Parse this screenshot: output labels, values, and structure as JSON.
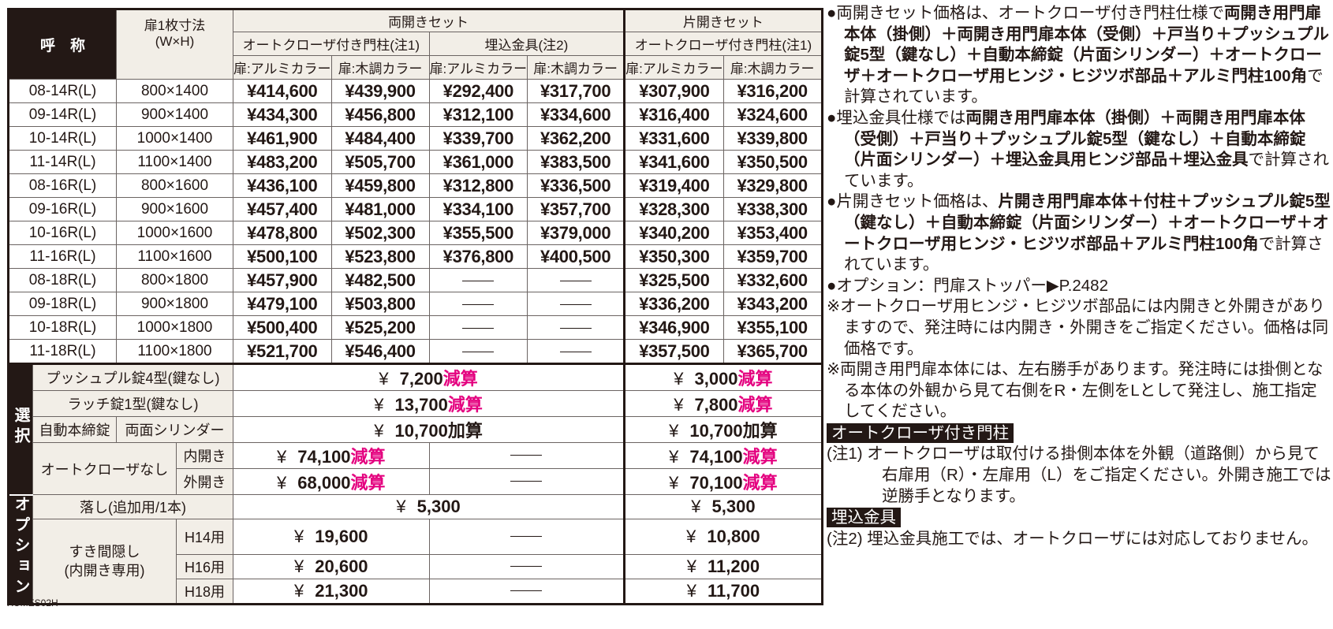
{
  "header": {
    "name": "呼　称",
    "size": "扉1枚寸法\n(W×H)",
    "double_set": "両開きセット",
    "single_set": "片開きセット",
    "autocloser_post": "オートクローザ付き門柱(注1)",
    "embedded": "埋込金具(注2)",
    "alu": "扉:アルミカラー",
    "wood": "扉:木調カラー"
  },
  "rows": [
    [
      "08-14R(L)",
      "800×1400",
      "¥414,600",
      "¥439,900",
      "¥292,400",
      "¥317,700",
      "¥307,900",
      "¥316,200"
    ],
    [
      "09-14R(L)",
      "900×1400",
      "¥434,300",
      "¥456,800",
      "¥312,100",
      "¥334,600",
      "¥316,400",
      "¥324,600"
    ],
    [
      "10-14R(L)",
      "1000×1400",
      "¥461,900",
      "¥484,400",
      "¥339,700",
      "¥362,200",
      "¥331,600",
      "¥339,800"
    ],
    [
      "11-14R(L)",
      "1100×1400",
      "¥483,200",
      "¥505,700",
      "¥361,000",
      "¥383,500",
      "¥341,600",
      "¥350,500"
    ],
    [
      "08-16R(L)",
      "800×1600",
      "¥436,100",
      "¥459,800",
      "¥312,800",
      "¥336,500",
      "¥319,400",
      "¥329,800"
    ],
    [
      "09-16R(L)",
      "900×1600",
      "¥457,400",
      "¥481,000",
      "¥334,100",
      "¥357,700",
      "¥328,300",
      "¥338,300"
    ],
    [
      "10-16R(L)",
      "1000×1600",
      "¥478,800",
      "¥502,300",
      "¥355,500",
      "¥379,000",
      "¥340,200",
      "¥353,400"
    ],
    [
      "11-16R(L)",
      "1100×1600",
      "¥500,100",
      "¥523,800",
      "¥376,800",
      "¥400,500",
      "¥350,300",
      "¥359,700"
    ],
    [
      "08-18R(L)",
      "800×1800",
      "¥457,900",
      "¥482,500",
      null,
      null,
      "¥325,500",
      "¥332,600"
    ],
    [
      "09-18R(L)",
      "900×1800",
      "¥479,100",
      "¥503,800",
      null,
      null,
      "¥336,200",
      "¥343,200"
    ],
    [
      "10-18R(L)",
      "1000×1800",
      "¥500,400",
      "¥525,200",
      null,
      null,
      "¥346,900",
      "¥355,100"
    ],
    [
      "11-18R(L)",
      "1100×1800",
      "¥521,700",
      "¥546,400",
      null,
      null,
      "¥357,500",
      "¥365,700"
    ]
  ],
  "options": {
    "select_label": "選択",
    "option_label": "オプション",
    "yen": "¥",
    "deduct_color": "#e4007f",
    "push_pull": {
      "label": "プッシュプル錠4型(鍵なし)",
      "double": "7,200",
      "double_suffix": "減算",
      "single": "3,000",
      "single_suffix": "減算"
    },
    "latch": {
      "label": "ラッチ錠1型(鍵なし)",
      "double": "13,700",
      "double_suffix": "減算",
      "single": "7,800",
      "single_suffix": "減算"
    },
    "deadbolt": {
      "label": "自動本締錠",
      "sub": "両面シリンダー",
      "double": "10,700",
      "double_suffix": "加算",
      "single": "10,700",
      "single_suffix": "加算"
    },
    "no_closer": {
      "label": "オートクローザなし",
      "inward": {
        "label": "内開き",
        "double": "74,100",
        "double_suffix": "減算",
        "single": "74,100",
        "single_suffix": "減算"
      },
      "outward": {
        "label": "外開き",
        "double": "68,000",
        "double_suffix": "減算",
        "single": "70,100",
        "single_suffix": "減算"
      }
    },
    "drop_rod": {
      "label": "落し(追加用/1本)",
      "double": "5,300",
      "single": "5,300"
    },
    "gap_cover": {
      "label": "すき間隠し\n(内開き専用)",
      "h14": {
        "label": "H14用",
        "double": "19,600",
        "single": "10,800"
      },
      "h16": {
        "label": "H16用",
        "double": "20,600",
        "single": "11,200"
      },
      "h18": {
        "label": "H18用",
        "double": "21,300",
        "single": "11,700"
      }
    }
  },
  "code": "XUMES02H",
  "notes": {
    "bullet": "●",
    "n1": {
      "a": "両開きセット価格は、オートクローザ付き門柱仕様で",
      "b": "両開き用門扉本体（掛側）＋両開き用門扉本体（受側）＋戸当り＋プッシュプル錠5型（鍵なし）＋自動本締錠（片面シリンダー）＋オートクローザ＋オートクローザ用ヒンジ・ヒジツボ部品＋アルミ門柱100角",
      "c": "で計算されています。"
    },
    "n2": {
      "a": "埋込金具仕様では",
      "b": "両開き用門扉本体（掛側）＋両開き用門扉本体（受側）＋戸当り＋プッシュプル錠5型（鍵なし）＋自動本締錠（片面シリンダー）＋埋込金具用ヒンジ部品＋埋込金具",
      "c": "で計算されています。"
    },
    "n3": {
      "a": "片開きセット価格は、",
      "b": "片開き用門扉本体＋付柱＋プッシュプル錠5型（鍵なし）＋自動本締錠（片面シリンダー）＋オートクローザ＋オートクローザ用ヒンジ・ヒジツボ部品＋アルミ門柱100角",
      "c": "で計算されています。"
    },
    "n4": "オプション：門扉ストッパー▶P.2482",
    "k1": "※オートクローザ用ヒンジ・ヒジツボ部品には内開きと外開きがありますので、発注時には内開き・外開きをご指定ください。価格は同価格です。",
    "k2": "※両開き用門扉本体には、左右勝手があります。発注時には掛側となる本体の外観から見て右側をR・左側をLとして発注し、施工指定してください。",
    "h1": "オートクローザ付き門柱",
    "c1": "(注1) オートクローザは取付ける掛側本体を外観（道路側）から見て右扉用（R）・左扉用（L）をご指定ください。外開き施工では逆勝手となります。",
    "h2": "埋込金具",
    "c2": "(注2) 埋込金具施工では、オートクローザには対応しておりません。"
  }
}
